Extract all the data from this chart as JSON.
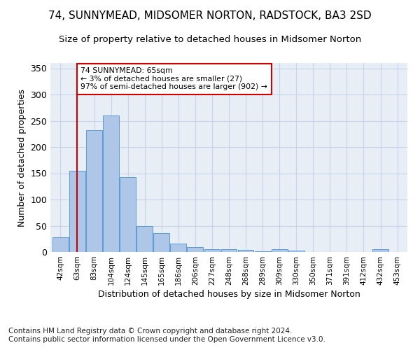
{
  "title": "74, SUNNYMEAD, MIDSOMER NORTON, RADSTOCK, BA3 2SD",
  "subtitle": "Size of property relative to detached houses in Midsomer Norton",
  "xlabel": "Distribution of detached houses by size in Midsomer Norton",
  "ylabel": "Number of detached properties",
  "footer_line1": "Contains HM Land Registry data © Crown copyright and database right 2024.",
  "footer_line2": "Contains public sector information licensed under the Open Government Licence v3.0.",
  "categories": [
    "42sqm",
    "63sqm",
    "83sqm",
    "104sqm",
    "124sqm",
    "145sqm",
    "165sqm",
    "186sqm",
    "206sqm",
    "227sqm",
    "248sqm",
    "268sqm",
    "289sqm",
    "309sqm",
    "330sqm",
    "350sqm",
    "371sqm",
    "391sqm",
    "412sqm",
    "432sqm",
    "453sqm"
  ],
  "values": [
    28,
    155,
    232,
    260,
    143,
    49,
    36,
    16,
    9,
    6,
    5,
    4,
    1,
    5,
    3,
    0,
    0,
    0,
    0,
    5,
    0
  ],
  "bar_color": "#aec6e8",
  "bar_edge_color": "#5b9bd5",
  "grid_color": "#c8d4e8",
  "background_color": "#e8eef6",
  "annotation_box_text": "74 SUNNYMEAD: 65sqm\n← 3% of detached houses are smaller (27)\n97% of semi-detached houses are larger (902) →",
  "annotation_box_color": "#cc0000",
  "vline_color": "#cc0000",
  "ylim": [
    0,
    360
  ],
  "yticks": [
    0,
    50,
    100,
    150,
    200,
    250,
    300,
    350
  ],
  "title_fontsize": 11,
  "subtitle_fontsize": 9.5,
  "xlabel_fontsize": 9,
  "ylabel_fontsize": 9,
  "footer_fontsize": 7.5
}
